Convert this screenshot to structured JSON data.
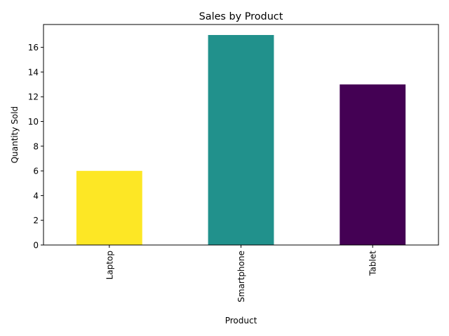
{
  "chart_data": {
    "type": "bar",
    "title": "Sales by Product",
    "xlabel": "Product",
    "ylabel": "Quantity Sold",
    "categories": [
      "Laptop",
      "Smartphone",
      "Tablet"
    ],
    "values": [
      6,
      17,
      13
    ],
    "colors": [
      "#fde725",
      "#21918c",
      "#440154"
    ],
    "ylim": [
      0,
      17.85
    ],
    "yticks": [
      0,
      2,
      4,
      6,
      8,
      10,
      12,
      14,
      16
    ],
    "grid": false,
    "legend": "none",
    "x_tick_rotation": "vertical"
  }
}
